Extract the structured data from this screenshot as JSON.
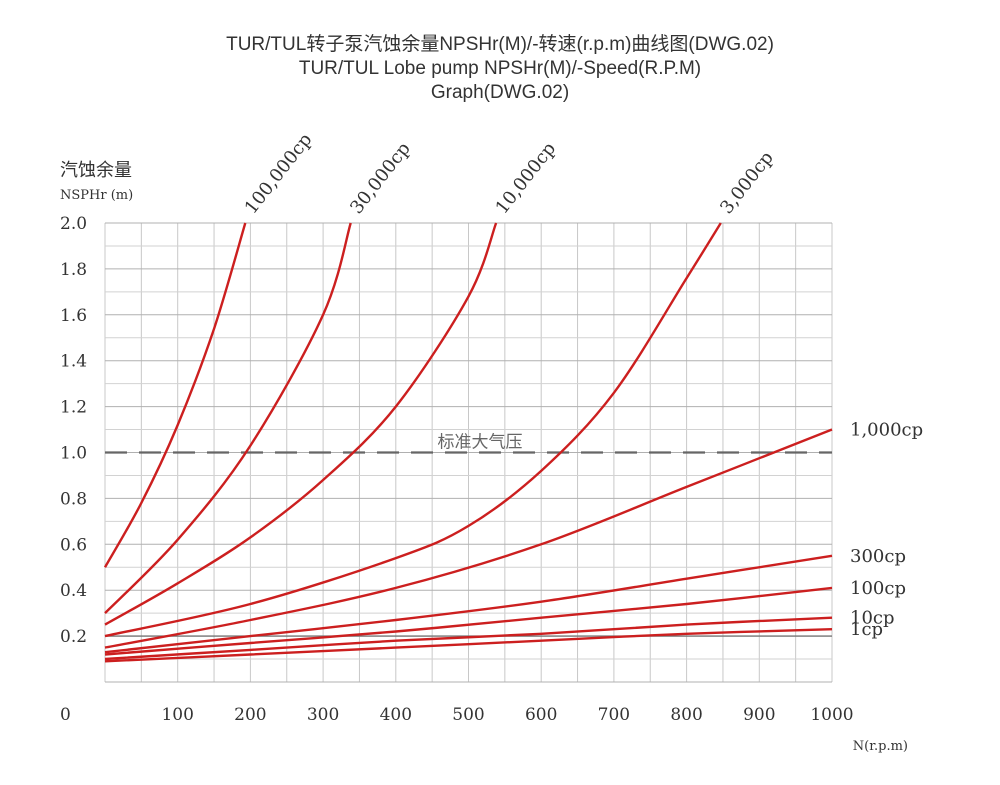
{
  "chart_data": {
    "type": "line",
    "title_lines": [
      "TUR/TUL转子泵汽蚀余量NPSHr(M)/-转速(r.p.m)曲线图(DWG.02)",
      "TUR/TUL Lobe pump NPSHr(M)/-Speed(R.P.M)",
      "Graph(DWG.02)"
    ],
    "ylabel_cn": "汽蚀余量",
    "ylabel": "NSPHr (m)",
    "xlabel": "N(r.p.m)",
    "x_origin_label": "0",
    "xlim": [
      0,
      1000
    ],
    "ylim": [
      0,
      2.0
    ],
    "x_ticks": [
      100,
      200,
      300,
      400,
      500,
      600,
      700,
      800,
      900,
      1000
    ],
    "x_tick_labels": [
      "100",
      "200",
      "300",
      "400",
      "500",
      "600",
      "700",
      "800",
      "900",
      "1000"
    ],
    "y_ticks": [
      0.2,
      0.4,
      0.6,
      0.8,
      1.0,
      1.2,
      1.4,
      1.6,
      1.8,
      2.0
    ],
    "y_tick_labels": [
      "0.2",
      "0.4",
      "0.6",
      "0.8",
      "1.0",
      "1.2",
      "1.4",
      "1.6",
      "1.8",
      "2.0"
    ],
    "grid": true,
    "reference_line": {
      "y": 1.0,
      "label": "标准大气压",
      "style": "dashed"
    },
    "series_color": "#cc1f1f",
    "series": [
      {
        "name": "100,000cp",
        "x": [
          0,
          50,
          100,
          150,
          193
        ],
        "y": [
          0.5,
          0.78,
          1.12,
          1.54,
          2.0
        ],
        "label_pos": "top"
      },
      {
        "name": "30,000cp",
        "x": [
          0,
          100,
          200,
          300,
          338
        ],
        "y": [
          0.3,
          0.62,
          1.03,
          1.6,
          2.0
        ],
        "label_pos": "top"
      },
      {
        "name": "10,000cp",
        "x": [
          0,
          100,
          200,
          300,
          400,
          500,
          538
        ],
        "y": [
          0.25,
          0.43,
          0.63,
          0.88,
          1.2,
          1.68,
          2.0
        ],
        "label_pos": "top"
      },
      {
        "name": "3,000cp",
        "x": [
          0,
          200,
          400,
          500,
          600,
          700,
          800,
          847
        ],
        "y": [
          0.2,
          0.34,
          0.54,
          0.68,
          0.92,
          1.26,
          1.76,
          2.0
        ],
        "label_pos": "top"
      },
      {
        "name": "1,000cp",
        "x": [
          0,
          200,
          400,
          600,
          800,
          1000
        ],
        "y": [
          0.15,
          0.27,
          0.41,
          0.6,
          0.85,
          1.1
        ],
        "label_pos": "right"
      },
      {
        "name": "300cp",
        "x": [
          0,
          200,
          400,
          600,
          800,
          1000
        ],
        "y": [
          0.13,
          0.2,
          0.27,
          0.35,
          0.45,
          0.55
        ],
        "label_pos": "right"
      },
      {
        "name": "100cp",
        "x": [
          0,
          200,
          400,
          600,
          800,
          1000
        ],
        "y": [
          0.12,
          0.17,
          0.22,
          0.28,
          0.34,
          0.41
        ],
        "label_pos": "right"
      },
      {
        "name": "10cp",
        "x": [
          0,
          200,
          400,
          600,
          800,
          1000
        ],
        "y": [
          0.1,
          0.14,
          0.18,
          0.21,
          0.25,
          0.28
        ],
        "label_pos": "right"
      },
      {
        "name": "1cp",
        "x": [
          0,
          200,
          400,
          600,
          800,
          1000
        ],
        "y": [
          0.09,
          0.12,
          0.15,
          0.18,
          0.21,
          0.23
        ],
        "label_pos": "right"
      }
    ]
  }
}
